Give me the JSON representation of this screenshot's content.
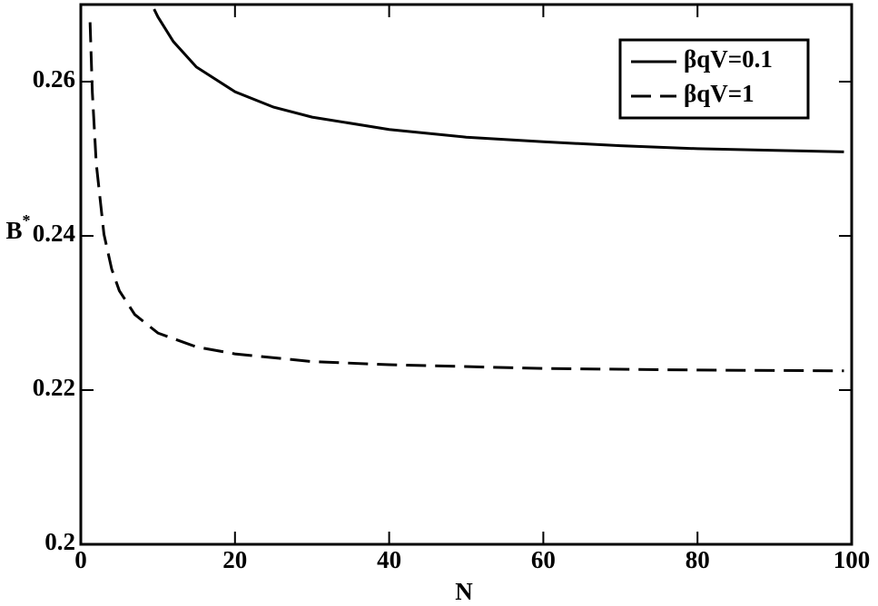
{
  "chart_data": {
    "type": "line",
    "x_label": "N",
    "y_label": {
      "base": "B",
      "superscript": "*"
    },
    "xlim": [
      0,
      100
    ],
    "xticks": [
      0,
      20,
      40,
      60,
      80,
      100
    ],
    "ylim": [
      0.2,
      0.27
    ],
    "yticks": [
      0.2,
      0.22,
      0.24,
      0.26
    ],
    "legend": "top-right",
    "series": [
      {
        "name": "βqV=0.1",
        "color": "#000000",
        "dash": "solid",
        "x": [
          9.5,
          10,
          12,
          15,
          20,
          25,
          30,
          40,
          50,
          60,
          70,
          80,
          90,
          99
        ],
        "values": [
          0.2694,
          0.2684,
          0.2652,
          0.2619,
          0.2587,
          0.2567,
          0.2554,
          0.2538,
          0.2528,
          0.2522,
          0.2517,
          0.2513,
          0.2511,
          0.2509
        ]
      },
      {
        "name": "βqV=1",
        "color": "#000000",
        "dash": "dashed",
        "x": [
          1.2,
          1.5,
          2,
          3,
          4,
          5,
          7,
          10,
          15,
          20,
          30,
          40,
          60,
          80,
          99
        ],
        "values": [
          0.2677,
          0.2586,
          0.2494,
          0.2402,
          0.2357,
          0.2329,
          0.2298,
          0.2274,
          0.2256,
          0.2247,
          0.2237,
          0.2233,
          0.2228,
          0.2226,
          0.2225
        ]
      }
    ]
  }
}
